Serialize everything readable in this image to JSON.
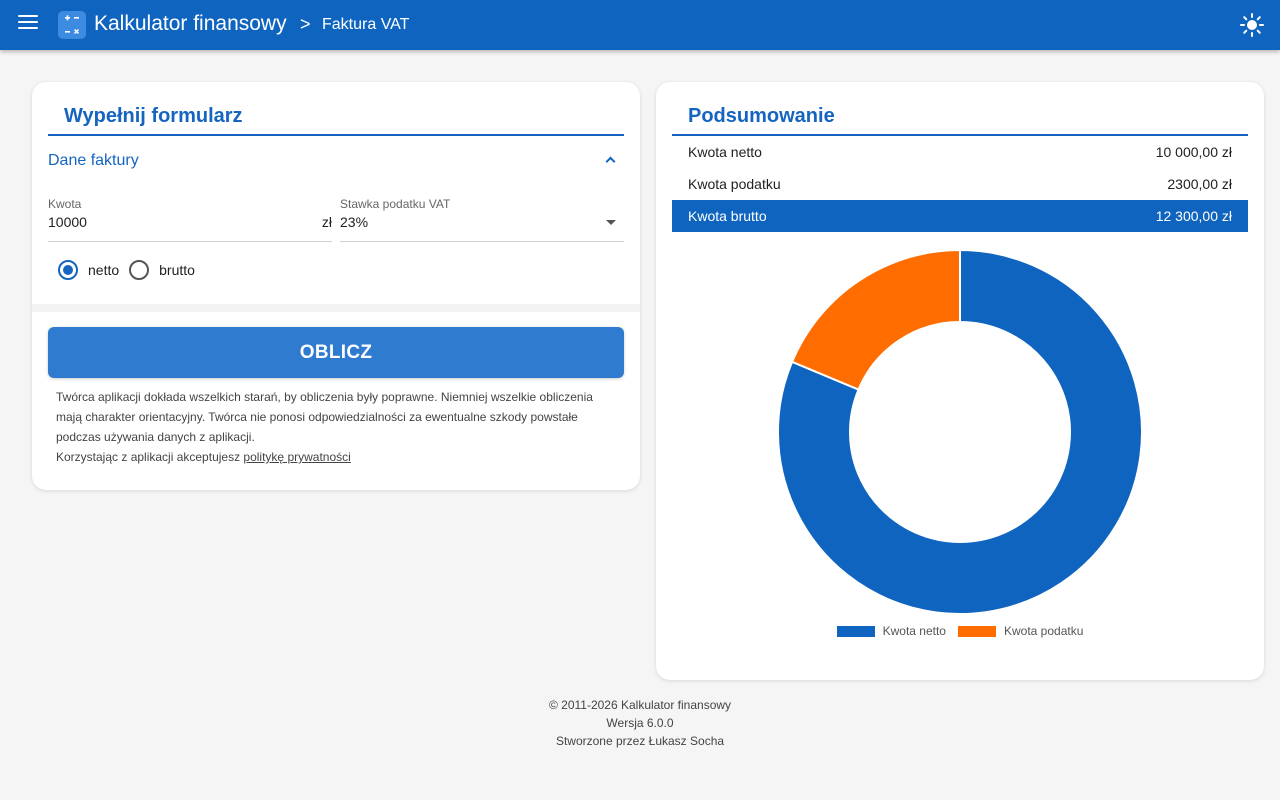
{
  "header": {
    "title": "Kalkulator finansowy",
    "breadcrumb_sep": ">",
    "page": "Faktura VAT",
    "menu_icon": "menu-icon",
    "theme_icon": "sun-icon",
    "logo_icon": "calculator-icon"
  },
  "form": {
    "title": "Wypełnij formularz",
    "section": "Dane faktury",
    "amount": {
      "label": "Kwota",
      "value": "10000",
      "suffix": "zł"
    },
    "vat": {
      "label": "Stawka podatku VAT",
      "value": "23%"
    },
    "radios": [
      {
        "label": "netto",
        "checked": true
      },
      {
        "label": "brutto",
        "checked": false
      }
    ],
    "button": "OBLICZ",
    "disclaimer": "Twórca aplikacji dokłada wszelkich starań, by obliczenia były poprawne. Niemniej wszelkie obliczenia mają charakter orientacyjny. Twórca nie ponosi odpowiedzialności za ewentualne szkody powstałe podczas używania danych z aplikacji.",
    "privacy_prefix": "Korzystając z aplikacji akceptujesz",
    "privacy_link": "politykę prywatności"
  },
  "summary": {
    "title": "Podsumowanie",
    "rows": [
      {
        "label": "Kwota netto",
        "value": "10 000,00 zł"
      },
      {
        "label": "Kwota podatku",
        "value": "2300,00 zł"
      },
      {
        "label": "Kwota brutto",
        "value": "12 300,00 zł"
      }
    ]
  },
  "chart_data": {
    "type": "pie",
    "categories": [
      "Kwota netto",
      "Kwota podatku"
    ],
    "values": [
      10000,
      2300
    ],
    "colors": [
      "#0f64c0",
      "#ff6d00"
    ],
    "legend": "bottom"
  },
  "footer": {
    "copyright": "© 2011-2026 Kalkulator finansowy",
    "version": "Wersja 6.0.0",
    "author": "Stworzone przez Łukasz Socha"
  }
}
